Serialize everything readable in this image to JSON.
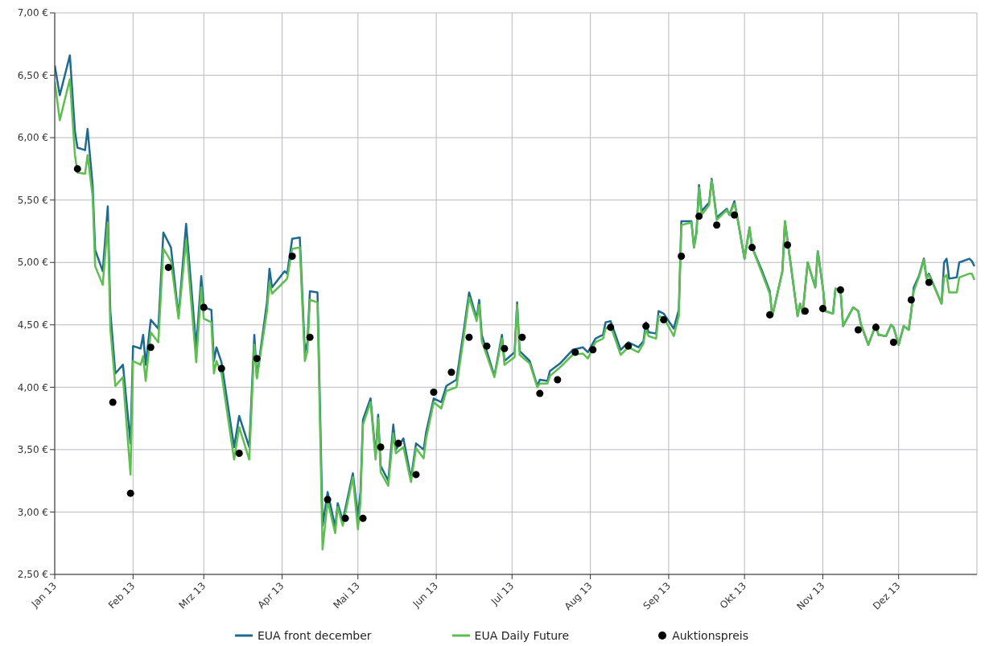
{
  "chart_data": {
    "type": "line",
    "x": [
      "2013-01-01",
      "2013-01-03",
      "2013-01-07",
      "2013-01-09",
      "2013-01-10",
      "2013-01-13",
      "2013-01-14",
      "2013-01-16",
      "2013-01-17",
      "2013-01-20",
      "2013-01-22",
      "2013-01-23",
      "2013-01-25",
      "2013-01-28",
      "2013-01-31",
      "2013-02-01",
      "2013-02-04",
      "2013-02-05",
      "2013-02-06",
      "2013-02-08",
      "2013-02-11",
      "2013-02-13",
      "2013-02-16",
      "2013-02-19",
      "2013-02-22",
      "2013-02-26",
      "2013-02-28",
      "2013-03-01",
      "2013-03-04",
      "2013-03-05",
      "2013-03-06",
      "2013-03-08",
      "2013-03-13",
      "2013-03-15",
      "2013-03-19",
      "2013-03-21",
      "2013-03-22",
      "2013-03-26",
      "2013-03-27",
      "2013-03-28",
      "2013-04-02",
      "2013-04-03",
      "2013-04-05",
      "2013-04-08",
      "2013-04-10",
      "2013-04-11",
      "2013-04-12",
      "2013-04-15",
      "2013-04-17",
      "2013-04-19",
      "2013-04-22",
      "2013-04-23",
      "2013-04-25",
      "2013-04-29",
      "2013-05-01",
      "2013-05-02",
      "2013-05-03",
      "2013-05-06",
      "2013-05-08",
      "2013-05-09",
      "2013-05-10",
      "2013-05-13",
      "2013-05-15",
      "2013-05-16",
      "2013-05-19",
      "2013-05-22",
      "2013-05-24",
      "2013-05-27",
      "2013-05-28",
      "2013-05-31",
      "2013-06-03",
      "2013-06-05",
      "2013-06-09",
      "2013-06-12",
      "2013-06-14",
      "2013-06-17",
      "2013-06-18",
      "2013-06-19",
      "2013-06-24",
      "2013-06-27",
      "2013-06-28",
      "2013-07-02",
      "2013-07-03",
      "2013-07-04",
      "2013-07-08",
      "2013-07-11",
      "2013-07-12",
      "2013-07-15",
      "2013-07-16",
      "2013-07-20",
      "2013-07-25",
      "2013-07-29",
      "2013-07-31",
      "2013-08-03",
      "2013-08-06",
      "2013-08-07",
      "2013-08-09",
      "2013-08-13",
      "2013-08-16",
      "2013-08-20",
      "2013-08-22",
      "2013-08-23",
      "2013-08-24",
      "2013-08-27",
      "2013-08-28",
      "2013-08-30",
      "2013-09-03",
      "2013-09-05",
      "2013-09-06",
      "2013-09-10",
      "2013-09-11",
      "2013-09-12",
      "2013-09-13",
      "2013-09-14",
      "2013-09-17",
      "2013-09-18",
      "2013-09-20",
      "2013-09-24",
      "2013-09-25",
      "2013-09-27",
      "2013-09-28",
      "2013-10-01",
      "2013-10-03",
      "2013-10-04",
      "2013-10-08",
      "2013-10-11",
      "2013-10-12",
      "2013-10-16",
      "2013-10-17",
      "2013-10-19",
      "2013-10-22",
      "2013-10-23",
      "2013-10-24",
      "2013-10-26",
      "2013-10-29",
      "2013-10-30",
      "2013-11-01",
      "2013-11-02",
      "2013-11-05",
      "2013-11-06",
      "2013-11-08",
      "2013-11-09",
      "2013-11-13",
      "2013-11-15",
      "2013-11-16",
      "2013-11-19",
      "2013-11-22",
      "2013-11-23",
      "2013-11-26",
      "2013-11-28",
      "2013-11-29",
      "2013-12-01",
      "2013-12-03",
      "2013-12-05",
      "2013-12-06",
      "2013-12-07",
      "2013-12-09",
      "2013-12-11",
      "2013-12-12",
      "2013-12-13",
      "2013-12-18",
      "2013-12-19",
      "2013-12-20",
      "2013-12-21",
      "2013-12-24",
      "2013-12-25",
      "2013-12-29",
      "2013-12-30",
      "2013-12-31"
    ],
    "series": [
      {
        "name": "EUA front december",
        "type": "line",
        "marker": "none",
        "color": "#1f6a8e",
        "values": [
          6.58,
          6.34,
          6.66,
          6.05,
          5.92,
          5.9,
          6.07,
          5.62,
          5.1,
          4.93,
          5.45,
          4.61,
          4.11,
          4.18,
          3.55,
          4.33,
          4.31,
          4.42,
          4.18,
          4.54,
          4.47,
          5.24,
          5.12,
          4.57,
          5.31,
          4.32,
          4.89,
          4.64,
          4.62,
          4.21,
          4.32,
          4.2,
          3.52,
          3.77,
          3.52,
          4.42,
          4.08,
          4.68,
          4.95,
          4.8,
          4.93,
          4.91,
          5.19,
          5.2,
          4.28,
          4.36,
          4.77,
          4.76,
          2.89,
          3.16,
          2.88,
          3.07,
          2.93,
          3.31,
          2.96,
          3.16,
          3.74,
          3.91,
          3.45,
          3.78,
          3.37,
          3.25,
          3.7,
          3.5,
          3.59,
          3.27,
          3.55,
          3.5,
          3.64,
          3.91,
          3.88,
          4.01,
          4.06,
          4.47,
          4.76,
          4.55,
          4.7,
          4.42,
          4.09,
          4.42,
          4.21,
          4.28,
          4.68,
          4.29,
          4.21,
          4.01,
          4.06,
          4.05,
          4.13,
          4.19,
          4.3,
          4.32,
          4.28,
          4.39,
          4.42,
          4.52,
          4.53,
          4.3,
          4.36,
          4.32,
          4.37,
          4.52,
          4.44,
          4.43,
          4.61,
          4.59,
          4.47,
          4.62,
          5.33,
          5.33,
          5.12,
          5.25,
          5.62,
          5.41,
          5.48,
          5.67,
          5.36,
          5.43,
          5.38,
          5.49,
          5.38,
          5.03,
          5.28,
          5.12,
          4.93,
          4.77,
          4.57,
          4.93,
          5.33,
          5.03,
          4.57,
          4.67,
          4.59,
          5.0,
          4.8,
          5.09,
          4.8,
          4.61,
          4.59,
          4.79,
          4.78,
          4.49,
          4.64,
          4.61,
          4.51,
          4.34,
          4.5,
          4.42,
          4.41,
          4.5,
          4.48,
          4.34,
          4.49,
          4.46,
          4.61,
          4.8,
          4.89,
          5.03,
          4.88,
          4.91,
          4.67,
          5.0,
          5.03,
          4.87,
          4.88,
          5.0,
          5.03,
          5.01,
          4.97
        ]
      },
      {
        "name": "EUA Daily Future",
        "type": "line",
        "marker": "none",
        "color": "#5cbf4f",
        "values": [
          6.45,
          6.14,
          6.47,
          5.86,
          5.72,
          5.71,
          5.86,
          5.53,
          4.97,
          4.82,
          5.32,
          4.47,
          4.01,
          4.08,
          3.3,
          4.21,
          4.18,
          4.25,
          4.05,
          4.44,
          4.36,
          5.11,
          5.01,
          4.55,
          5.18,
          4.2,
          4.8,
          4.55,
          4.52,
          4.11,
          4.21,
          4.11,
          3.42,
          3.68,
          3.42,
          4.34,
          4.07,
          4.61,
          4.84,
          4.75,
          4.85,
          4.87,
          5.11,
          5.12,
          4.21,
          4.29,
          4.7,
          4.68,
          2.7,
          3.09,
          2.83,
          3.04,
          2.89,
          3.28,
          2.86,
          3.08,
          3.7,
          3.88,
          3.42,
          3.75,
          3.32,
          3.21,
          3.63,
          3.47,
          3.52,
          3.24,
          3.51,
          3.43,
          3.59,
          3.88,
          3.83,
          3.97,
          4.0,
          4.42,
          4.72,
          4.53,
          4.66,
          4.37,
          4.08,
          4.39,
          4.18,
          4.24,
          4.66,
          4.26,
          4.19,
          4.0,
          4.03,
          4.03,
          4.09,
          4.16,
          4.26,
          4.27,
          4.23,
          4.36,
          4.39,
          4.47,
          4.49,
          4.26,
          4.32,
          4.28,
          4.35,
          4.47,
          4.41,
          4.39,
          4.57,
          4.56,
          4.41,
          4.57,
          5.3,
          5.32,
          5.12,
          5.23,
          5.6,
          5.38,
          5.46,
          5.66,
          5.34,
          5.42,
          5.38,
          5.47,
          5.38,
          5.03,
          5.28,
          5.12,
          4.91,
          4.75,
          4.57,
          4.93,
          5.33,
          5.03,
          4.57,
          4.67,
          4.59,
          5.0,
          4.8,
          5.09,
          4.8,
          4.61,
          4.59,
          4.79,
          4.78,
          4.49,
          4.64,
          4.61,
          4.51,
          4.34,
          4.5,
          4.42,
          4.41,
          4.5,
          4.48,
          4.34,
          4.49,
          4.46,
          4.61,
          4.77,
          4.88,
          5.02,
          4.87,
          4.9,
          4.67,
          4.88,
          4.9,
          4.76,
          4.76,
          4.88,
          4.91,
          4.91,
          4.86
        ]
      },
      {
        "name": "Auktionspreis",
        "type": "scatter",
        "marker": "circle",
        "color": "#000000",
        "x": [
          "2013-01-10",
          "2013-01-24",
          "2013-01-31",
          "2013-02-08",
          "2013-02-15",
          "2013-03-01",
          "2013-03-08",
          "2013-03-15",
          "2013-03-22",
          "2013-04-05",
          "2013-04-12",
          "2013-04-19",
          "2013-04-26",
          "2013-05-03",
          "2013-05-10",
          "2013-05-17",
          "2013-05-24",
          "2013-05-31",
          "2013-06-07",
          "2013-06-14",
          "2013-06-21",
          "2013-06-28",
          "2013-07-05",
          "2013-07-12",
          "2013-07-19",
          "2013-07-26",
          "2013-08-02",
          "2013-08-09",
          "2013-08-16",
          "2013-08-23",
          "2013-08-30",
          "2013-09-06",
          "2013-09-13",
          "2013-09-20",
          "2013-09-27",
          "2013-10-04",
          "2013-10-11",
          "2013-10-18",
          "2013-10-25",
          "2013-11-01",
          "2013-11-08",
          "2013-11-15",
          "2013-11-22",
          "2013-11-29",
          "2013-12-06",
          "2013-12-13"
        ],
        "values": [
          5.75,
          3.88,
          3.15,
          4.32,
          4.96,
          4.64,
          4.15,
          3.47,
          4.23,
          5.05,
          4.4,
          3.1,
          2.95,
          2.95,
          3.52,
          3.55,
          3.3,
          3.96,
          4.12,
          4.4,
          4.33,
          4.31,
          4.4,
          3.95,
          4.06,
          4.28,
          4.3,
          4.48,
          4.33,
          4.49,
          4.54,
          5.05,
          5.37,
          5.3,
          5.38,
          5.12,
          4.58,
          5.14,
          4.61,
          4.63,
          4.78,
          4.46,
          4.48,
          4.36,
          4.7,
          4.84
        ]
      }
    ],
    "xlim": [
      "2013-01-01",
      "2014-01-01"
    ],
    "xticks": [
      {
        "value": "2013-01-01",
        "label": "Jan 13"
      },
      {
        "value": "2013-02-01",
        "label": "Feb 13"
      },
      {
        "value": "2013-03-01",
        "label": "Mrz 13"
      },
      {
        "value": "2013-04-01",
        "label": "Apr 13"
      },
      {
        "value": "2013-05-01",
        "label": "Mai 13"
      },
      {
        "value": "2013-06-01",
        "label": "Jun 13"
      },
      {
        "value": "2013-07-01",
        "label": "Jul 13"
      },
      {
        "value": "2013-08-01",
        "label": "Aug 13"
      },
      {
        "value": "2013-09-01",
        "label": "Sep 13"
      },
      {
        "value": "2013-10-01",
        "label": "Okt 13"
      },
      {
        "value": "2013-11-01",
        "label": "Nov 13"
      },
      {
        "value": "2013-12-01",
        "label": "Dez 13"
      }
    ],
    "ylim": [
      2.5,
      7
    ],
    "yticks": [
      {
        "value": 2.5,
        "label": "2,50 €"
      },
      {
        "value": 3,
        "label": "3,00 €"
      },
      {
        "value": 3.5,
        "label": "3,50 €"
      },
      {
        "value": 4,
        "label": "4,00 €"
      },
      {
        "value": 4.5,
        "label": "4,50 €"
      },
      {
        "value": 5,
        "label": "5,00 €"
      },
      {
        "value": 5.5,
        "label": "5,50 €"
      },
      {
        "value": 6,
        "label": "6,00 €"
      },
      {
        "value": 6.5,
        "label": "6,50 €"
      },
      {
        "value": 7,
        "label": "7,00 €"
      }
    ],
    "grid": true,
    "legend": "bottom",
    "line_style": "solid"
  }
}
